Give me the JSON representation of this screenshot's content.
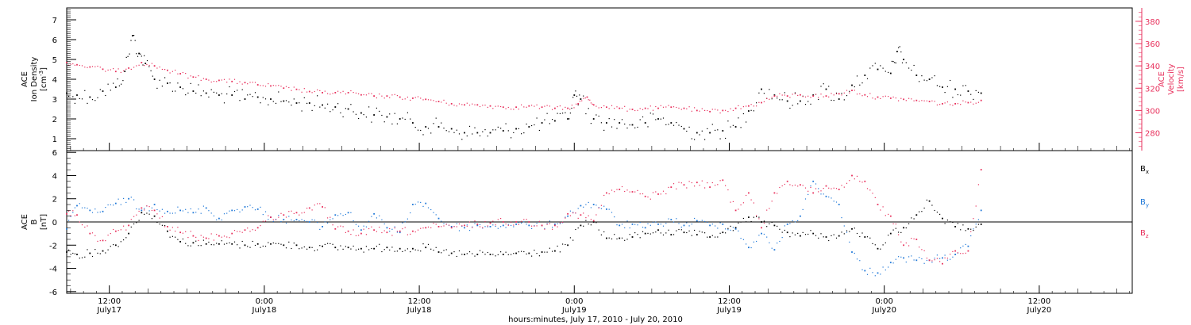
{
  "chart_data": [
    {
      "type": "scatter",
      "title": "",
      "xlabel": "hours:minutes, July 17, 2010 - July 20, 2010",
      "x_unit": "hours since 2010-07-17 00:00",
      "xlim": [
        8.7,
        91.2
      ],
      "x_ticks": [
        {
          "x": 12,
          "time": "12:00",
          "date": "July17"
        },
        {
          "x": 24,
          "time": "0:00",
          "date": "July18"
        },
        {
          "x": 36,
          "time": "12:00",
          "date": "July18"
        },
        {
          "x": 48,
          "time": "0:00",
          "date": "July19"
        },
        {
          "x": 60,
          "time": "12:00",
          "date": "July19"
        },
        {
          "x": 72,
          "time": "0:00",
          "date": "July20"
        },
        {
          "x": 84,
          "time": "12:00",
          "date": "July20"
        }
      ],
      "ylabel_left": {
        "line1": "ACE",
        "line2": "Ion Density",
        "unit_pre": "[cm",
        "unit_sup": "-3",
        "unit_post": "]"
      },
      "ylim_left": [
        0.4,
        7.6
      ],
      "yticks_left": [
        "1",
        "2",
        "3",
        "4",
        "5",
        "6",
        "7"
      ],
      "ylabel_right": {
        "line1": "ACE",
        "line2": "Velocity",
        "unit": "[km/s]"
      },
      "ylim_right": [
        264,
        392
      ],
      "yticks_right": [
        "280",
        "300",
        "320",
        "340",
        "360",
        "380"
      ],
      "grid": false,
      "series": [
        {
          "axis": "left",
          "color": "#000000",
          "x": [
            8.7,
            9.5,
            10.5,
            11.5,
            12.5,
            13.2,
            13.8,
            14.3,
            14.8,
            15.5,
            16.5,
            17.5,
            18.5,
            19.5,
            20.5,
            21.5,
            22.5,
            23.5,
            24.5,
            25.5,
            26.5,
            27.5,
            28.5,
            29.5,
            30.5,
            31.5,
            32.5,
            33.5,
            34.5,
            35.5,
            36.5,
            37.5,
            38.5,
            39.5,
            40.5,
            41.5,
            42.5,
            43.5,
            44.5,
            45.5,
            46.5,
            47.5,
            48.0,
            48.5,
            49.5,
            50.5,
            51.5,
            52.5,
            53.5,
            54.5,
            55.5,
            56.5,
            57.5,
            58.5,
            59.5,
            60.5,
            61.5,
            62.5,
            63.5,
            64.5,
            65.5,
            66.5,
            67.5,
            68.5,
            69.5,
            70.5,
            71.5,
            72.5,
            73.0,
            73.5,
            74.5,
            75.5,
            76.5,
            77.5,
            78.5,
            79.5
          ],
          "y": [
            3.3,
            3.2,
            3.1,
            3.4,
            3.6,
            4.4,
            6.2,
            5.3,
            4.8,
            4.0,
            3.8,
            3.6,
            3.4,
            3.3,
            3.2,
            3.2,
            3.0,
            3.1,
            3.0,
            2.9,
            2.8,
            2.8,
            2.7,
            2.6,
            2.5,
            2.3,
            2.2,
            2.1,
            2.0,
            1.8,
            1.6,
            1.6,
            1.5,
            1.3,
            1.3,
            1.3,
            1.4,
            1.5,
            1.6,
            1.8,
            1.9,
            2.0,
            3.2,
            3.0,
            2.0,
            1.8,
            1.8,
            1.7,
            1.8,
            2.0,
            1.8,
            1.5,
            1.3,
            1.3,
            1.4,
            1.6,
            2.4,
            3.5,
            3.2,
            2.9,
            2.9,
            3.2,
            3.5,
            3.0,
            3.7,
            4.2,
            4.5,
            4.3,
            5.4,
            5.0,
            4.2,
            4.0,
            3.6,
            3.5,
            3.4,
            3.3
          ]
        },
        {
          "axis": "right",
          "color": "#e8305c",
          "x": [
            8.7,
            9.5,
            10.5,
            11.5,
            12.5,
            13.5,
            14.5,
            15.5,
            16.5,
            17.5,
            18.5,
            19.5,
            20.5,
            21.5,
            22.5,
            23.5,
            24.5,
            25.5,
            26.5,
            27.5,
            28.5,
            29.5,
            30.5,
            31.5,
            32.5,
            33.5,
            34.5,
            35.5,
            36.5,
            37.5,
            38.5,
            39.5,
            40.5,
            41.5,
            42.5,
            43.5,
            44.5,
            45.5,
            46.5,
            47.5,
            48.3,
            49.0,
            49.5,
            50.5,
            51.5,
            52.5,
            53.5,
            54.5,
            55.5,
            56.5,
            57.5,
            58.5,
            59.5,
            60.5,
            61.5,
            62.5,
            63.5,
            64.5,
            65.5,
            66.5,
            67.5,
            68.5,
            69.5,
            70.5,
            71.5,
            72.5,
            73.5,
            74.5,
            75.5,
            76.5,
            77.5,
            78.5,
            79.5
          ],
          "y": [
            343,
            341,
            339,
            337,
            335,
            338,
            343,
            340,
            336,
            333,
            330,
            328,
            327,
            326,
            325,
            323,
            322,
            320,
            319,
            317,
            316,
            316,
            316,
            314,
            313,
            313,
            312,
            311,
            310,
            308,
            306,
            305,
            305,
            304,
            303,
            303,
            304,
            303,
            302,
            302,
            306,
            312,
            305,
            303,
            302,
            301,
            302,
            302,
            303,
            302,
            300,
            299,
            300,
            302,
            304,
            307,
            313,
            313,
            314,
            313,
            313,
            315,
            318,
            314,
            312,
            311,
            310,
            309,
            308,
            306,
            306,
            307,
            309
          ]
        }
      ]
    },
    {
      "type": "scatter",
      "title": "",
      "xlabel": "hours:minutes, July 17, 2010 - July 20, 2010",
      "x_unit": "hours since 2010-07-17 00:00",
      "xlim": [
        8.7,
        91.2
      ],
      "ylabel": {
        "line1": "ACE",
        "line2": "B",
        "unit": "[nT]"
      },
      "ylim": [
        -6.15,
        6.15
      ],
      "yticks": [
        "-6",
        "-4",
        "-2",
        "0",
        "2",
        "4",
        "6"
      ],
      "zero_line": true,
      "grid": false,
      "legend_position": "right",
      "series": [
        {
          "name": "Bx",
          "label_main": "B",
          "label_sub": "x",
          "color": "#000000",
          "x": [
            8.7,
            9.5,
            10.5,
            11.5,
            12.5,
            13.5,
            14.5,
            15.5,
            16.5,
            17.5,
            18.5,
            19.5,
            20.5,
            21.5,
            22.5,
            23.5,
            24.5,
            25.5,
            26.5,
            27.5,
            28.5,
            29.5,
            30.5,
            31.5,
            32.5,
            33.5,
            34.5,
            35.5,
            36.5,
            37.5,
            38.5,
            39.5,
            40.5,
            41.5,
            42.5,
            43.5,
            44.5,
            45.5,
            46.5,
            47.5,
            48.5,
            49.5,
            50.5,
            51.5,
            52.5,
            53.5,
            54.5,
            55.5,
            56.5,
            57.5,
            58.5,
            59.5,
            60.5,
            61.5,
            62.5,
            63.5,
            64.5,
            65.5,
            66.5,
            67.5,
            68.5,
            69.5,
            70.5,
            71.5,
            72.5,
            73.5,
            74.5,
            75.5,
            76.5,
            77.5,
            78.5,
            79.5
          ],
          "y": [
            -2.6,
            -2.8,
            -2.7,
            -2.5,
            -2.0,
            -1.0,
            0.8,
            0.5,
            -0.8,
            -1.7,
            -1.8,
            -1.9,
            -1.9,
            -1.9,
            -2.0,
            -1.9,
            -1.9,
            -2.0,
            -2.0,
            -2.2,
            -2.1,
            -2.2,
            -2.2,
            -2.3,
            -2.3,
            -2.2,
            -2.3,
            -2.3,
            -2.2,
            -2.6,
            -2.7,
            -2.8,
            -2.8,
            -2.8,
            -2.8,
            -2.7,
            -2.7,
            -2.6,
            -2.5,
            -2.0,
            -0.3,
            0.0,
            -1.4,
            -1.4,
            -1.3,
            -1.0,
            -0.7,
            -1.1,
            -0.9,
            -1.1,
            -1.3,
            -0.9,
            -0.5,
            0.4,
            0.0,
            -0.3,
            -0.9,
            -1.2,
            -1.0,
            -1.3,
            -1.2,
            -0.6,
            -1.3,
            -2.3,
            -1.0,
            -0.5,
            0.6,
            1.8,
            0.3,
            -0.4,
            -0.6,
            -0.2
          ]
        },
        {
          "name": "By",
          "label_main": "B",
          "label_sub": "y",
          "color": "#1f78d8",
          "x": [
            8.7,
            9.5,
            10.5,
            11.5,
            12.5,
            13.5,
            14.5,
            15.5,
            16.5,
            17.5,
            18.5,
            19.5,
            20.5,
            21.5,
            22.5,
            23.5,
            24.5,
            25.5,
            26.5,
            27.5,
            28.5,
            29.5,
            30.5,
            31.5,
            32.5,
            33.5,
            34.5,
            35.5,
            36.5,
            37.5,
            38.5,
            39.5,
            40.5,
            41.5,
            42.5,
            43.5,
            44.5,
            45.5,
            46.5,
            47.5,
            48.5,
            49.5,
            50.5,
            51.5,
            52.5,
            53.5,
            54.5,
            55.5,
            56.5,
            57.5,
            58.5,
            59.5,
            60.5,
            61.5,
            62.5,
            63.5,
            64.5,
            65.5,
            66.5,
            67.5,
            68.5,
            69.5,
            70.5,
            71.5,
            72.5,
            73.5,
            74.5,
            75.5,
            76.5,
            77.5,
            78.5,
            79.5
          ],
          "y": [
            -0.6,
            1.4,
            1.0,
            0.9,
            1.6,
            2.0,
            1.0,
            1.5,
            0.9,
            1.0,
            0.8,
            1.2,
            0.3,
            1.0,
            1.3,
            1.1,
            0.4,
            0.2,
            0.2,
            0.0,
            -0.4,
            0.6,
            0.8,
            -0.7,
            0.7,
            -0.5,
            -0.9,
            1.5,
            1.6,
            0.3,
            -0.4,
            -0.5,
            -0.3,
            -0.4,
            -0.3,
            -0.2,
            -0.3,
            -0.3,
            -0.2,
            0.5,
            1.4,
            1.5,
            1.1,
            -0.3,
            -0.2,
            -0.5,
            -0.2,
            0.2,
            -0.3,
            0.1,
            -0.3,
            -0.2,
            -0.6,
            -2.2,
            -1.0,
            -2.4,
            -0.2,
            0.5,
            3.5,
            2.2,
            1.5,
            -2.6,
            -4.2,
            -4.4,
            -3.5,
            -3.1,
            -3.3,
            -3.3,
            -3.1,
            -2.8,
            -2.1,
            1.0
          ]
        },
        {
          "name": "Bz",
          "label_main": "B",
          "label_sub": "z",
          "color": "#e8305c",
          "x": [
            8.7,
            9.5,
            10.5,
            11.5,
            12.5,
            13.5,
            14.5,
            15.5,
            16.5,
            17.5,
            18.5,
            19.5,
            20.5,
            21.5,
            22.5,
            23.5,
            24.5,
            25.5,
            26.5,
            27.5,
            28.5,
            29.5,
            30.5,
            31.5,
            32.5,
            33.5,
            34.5,
            35.5,
            36.5,
            37.5,
            38.5,
            39.5,
            40.5,
            41.5,
            42.5,
            43.5,
            44.5,
            45.5,
            46.5,
            47.5,
            48.5,
            49.5,
            50.5,
            51.5,
            52.5,
            53.5,
            54.5,
            55.5,
            56.5,
            57.5,
            58.5,
            59.5,
            60.5,
            61.5,
            62.5,
            63.5,
            64.5,
            65.5,
            66.5,
            67.5,
            68.5,
            69.5,
            70.5,
            71.5,
            72.5,
            73.5,
            74.5,
            75.5,
            76.5,
            77.5,
            78.5,
            79.5
          ],
          "y": [
            0.7,
            0.6,
            -1.0,
            -1.6,
            -0.8,
            -0.3,
            1.2,
            1.0,
            -0.4,
            -0.9,
            -1.2,
            -1.4,
            -1.2,
            -1.0,
            -0.7,
            -0.5,
            0.4,
            0.6,
            0.8,
            1.2,
            1.3,
            -0.6,
            -0.8,
            -1.0,
            -0.7,
            -0.9,
            -0.8,
            -0.8,
            -0.5,
            -0.4,
            -0.5,
            -0.3,
            -0.2,
            -0.1,
            0.0,
            0.0,
            0.0,
            -0.3,
            -0.3,
            0.7,
            0.6,
            0.1,
            2.5,
            2.8,
            2.6,
            2.2,
            2.4,
            3.0,
            3.2,
            3.4,
            3.0,
            3.6,
            1.0,
            2.5,
            -0.5,
            2.5,
            3.5,
            3.2,
            2.5,
            3.1,
            2.8,
            4.0,
            3.5,
            1.5,
            0.5,
            -2.0,
            -1.5,
            -3.3,
            -3.6,
            -2.5,
            -2.5,
            4.5
          ]
        }
      ]
    }
  ]
}
